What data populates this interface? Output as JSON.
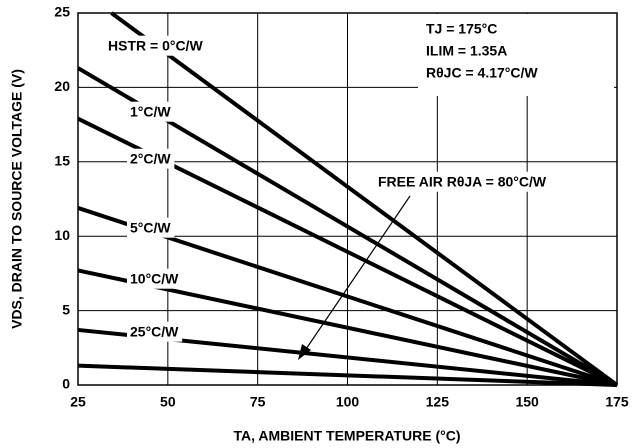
{
  "chart_data": {
    "type": "line",
    "x_label": "TA, AMBIENT TEMPERATURE (°C)",
    "y_label": "VDS, DRAIN TO SOURCE VOLTAGE (V)",
    "annotations": [
      "TJ = 175°C",
      "ILIM = 1.35A",
      "RθJC = 4.17°C/W"
    ],
    "series": [
      {
        "name": "HSTR = 0°C/W",
        "color": "#000000",
        "x": [
          34.3,
          175
        ],
        "values": [
          25,
          0
        ]
      },
      {
        "name": "1°C/W",
        "color": "#000000",
        "x": [
          25,
          175
        ],
        "values": [
          21.3,
          0
        ]
      },
      {
        "name": "2°C/W",
        "color": "#000000",
        "x": [
          25,
          175
        ],
        "values": [
          17.9,
          0
        ]
      },
      {
        "name": "5°C/W",
        "color": "#000000",
        "x": [
          25,
          175
        ],
        "values": [
          11.9,
          0
        ]
      },
      {
        "name": "10°C/W",
        "color": "#000000",
        "x": [
          25,
          175
        ],
        "values": [
          7.7,
          0
        ]
      },
      {
        "name": "25°C/W",
        "color": "#000000",
        "x": [
          25,
          175
        ],
        "values": [
          3.7,
          0
        ]
      },
      {
        "name": "FREE AIR RθJA = 80°C/W",
        "color": "#000000",
        "x": [
          25,
          175
        ],
        "values": [
          1.3,
          0
        ]
      }
    ],
    "xlim": [
      25,
      175
    ],
    "xticks": [
      25,
      50,
      75,
      100,
      125,
      150,
      175
    ],
    "ylim": [
      0,
      25
    ],
    "yticks": [
      0,
      5,
      10,
      15,
      20,
      25
    ],
    "grid": true
  }
}
